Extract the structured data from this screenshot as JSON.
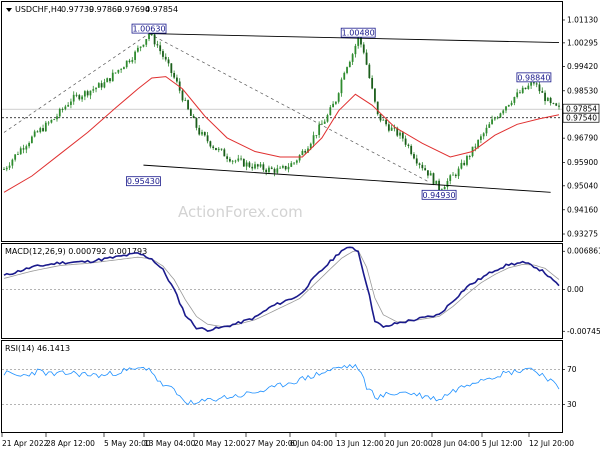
{
  "chart_data": [
    {
      "type": "candlestick",
      "panel": "price",
      "header": {
        "symbol": "USDCHF,H4",
        "o": "0.97739",
        "h": "0.97869",
        "l": "0.97694",
        "c": "0.97854"
      },
      "watermark": "ActionForex.com",
      "ylim": [
        0.9305,
        1.0135
      ],
      "yticks": [
        1.0113,
        1.0029,
        0.9942,
        0.9853,
        0.9767,
        0.9679,
        0.959,
        0.9504,
        0.9416,
        0.9327
      ],
      "ytick_labels": [
        "1.01130",
        "1.00295",
        "0.99420",
        "0.98530",
        "0.97670",
        "0.96790",
        "0.95900",
        "0.95040",
        "0.94160",
        "0.93275"
      ],
      "last_price": 0.97854,
      "last_price_label": "0.97854",
      "support_level": 0.9754,
      "support_label": "0.97540",
      "annotations": [
        {
          "label": "1.00630",
          "value": 1.0063
        },
        {
          "label": "0.95430",
          "value": 0.9543
        },
        {
          "label": "1.00480",
          "value": 1.0048
        },
        {
          "label": "0.94930",
          "value": 0.9493
        },
        {
          "label": "0.98840",
          "value": 0.9884
        }
      ],
      "path": [
        [
          0,
          0.9565
        ],
        [
          6,
          0.964
        ],
        [
          12,
          0.97
        ],
        [
          18,
          0.975
        ],
        [
          24,
          0.982
        ],
        [
          30,
          0.985
        ],
        [
          36,
          0.988
        ],
        [
          42,
          0.994
        ],
        [
          47,
          0.999
        ],
        [
          52,
          1.0063
        ],
        [
          55,
          1.002
        ],
        [
          58,
          0.996
        ],
        [
          62,
          0.988
        ],
        [
          66,
          0.978
        ],
        [
          70,
          0.97
        ],
        [
          76,
          0.964
        ],
        [
          82,
          0.96
        ],
        [
          88,
          0.958
        ],
        [
          94,
          0.9565
        ],
        [
          99,
          0.956
        ],
        [
          104,
          0.959
        ],
        [
          108,
          0.964
        ],
        [
          112,
          0.97
        ],
        [
          116,
          0.976
        ],
        [
          119,
          0.982
        ],
        [
          122,
          0.993
        ],
        [
          125,
          0.999
        ],
        [
          127,
          1.0048
        ],
        [
          129,
          1.0
        ],
        [
          131,
          0.99
        ],
        [
          134,
          0.976
        ],
        [
          138,
          0.972
        ],
        [
          143,
          0.968
        ],
        [
          148,
          0.96
        ],
        [
          153,
          0.954
        ],
        [
          156,
          0.9493
        ],
        [
          159,
          0.952
        ],
        [
          163,
          0.956
        ],
        [
          167,
          0.962
        ],
        [
          171,
          0.968
        ],
        [
          175,
          0.974
        ],
        [
          179,
          0.979
        ],
        [
          183,
          0.983
        ],
        [
          187,
          0.986
        ],
        [
          190,
          0.9884
        ],
        [
          193,
          0.984
        ],
        [
          196,
          0.98
        ],
        [
          199,
          0.9785
        ]
      ],
      "moving_average": [
        [
          0,
          0.948
        ],
        [
          10,
          0.954
        ],
        [
          20,
          0.962
        ],
        [
          30,
          0.97
        ],
        [
          40,
          0.979
        ],
        [
          48,
          0.986
        ],
        [
          53,
          0.99
        ],
        [
          58,
          0.9905
        ],
        [
          64,
          0.986
        ],
        [
          72,
          0.976
        ],
        [
          80,
          0.968
        ],
        [
          90,
          0.963
        ],
        [
          99,
          0.961
        ],
        [
          107,
          0.961
        ],
        [
          114,
          0.968
        ],
        [
          120,
          0.978
        ],
        [
          126,
          0.984
        ],
        [
          132,
          0.98
        ],
        [
          140,
          0.972
        ],
        [
          150,
          0.966
        ],
        [
          160,
          0.961
        ],
        [
          168,
          0.963
        ],
        [
          176,
          0.969
        ],
        [
          184,
          0.973
        ],
        [
          192,
          0.975
        ],
        [
          199,
          0.9765
        ]
      ],
      "trendlines": [
        {
          "from": [
            52,
            1.0063
          ],
          "to": [
            199,
            1.003
          ]
        },
        {
          "from": [
            50,
            0.958
          ],
          "to": [
            196,
            0.948
          ]
        }
      ],
      "dashed_trendlines": [
        {
          "from": [
            0,
            0.97
          ],
          "to": [
            52,
            1.0063
          ]
        },
        {
          "from": [
            52,
            1.0063
          ],
          "to": [
            152,
            0.952
          ]
        }
      ]
    },
    {
      "type": "line",
      "panel": "macd",
      "label": "MACD(12,26,9) 0.000792 0.001793",
      "ylim": [
        -0.0083,
        0.0078
      ],
      "yticks": [
        0.006861,
        0.0,
        -0.007454
      ],
      "ytick_labels": [
        "0.006861",
        "0.00",
        "-0.007454"
      ],
      "main": [
        [
          0,
          0.0025
        ],
        [
          10,
          0.004
        ],
        [
          20,
          0.0048
        ],
        [
          30,
          0.005
        ],
        [
          40,
          0.0058
        ],
        [
          48,
          0.0065
        ],
        [
          53,
          0.0055
        ],
        [
          57,
          0.0035
        ],
        [
          61,
          0.0
        ],
        [
          65,
          -0.0045
        ],
        [
          69,
          -0.0068
        ],
        [
          73,
          -0.0072
        ],
        [
          78,
          -0.0068
        ],
        [
          84,
          -0.006
        ],
        [
          90,
          -0.005
        ],
        [
          96,
          -0.003
        ],
        [
          101,
          -0.002
        ],
        [
          106,
          -0.001
        ],
        [
          111,
          0.002
        ],
        [
          116,
          0.0045
        ],
        [
          121,
          0.007
        ],
        [
          125,
          0.0076
        ],
        [
          127,
          0.0068
        ],
        [
          130,
          0.001
        ],
        [
          133,
          -0.0055
        ],
        [
          136,
          -0.0068
        ],
        [
          141,
          -0.006
        ],
        [
          146,
          -0.0055
        ],
        [
          151,
          -0.005
        ],
        [
          156,
          -0.0045
        ],
        [
          161,
          -0.002
        ],
        [
          166,
          0.0005
        ],
        [
          171,
          0.002
        ],
        [
          176,
          0.0035
        ],
        [
          181,
          0.0045
        ],
        [
          186,
          0.0048
        ],
        [
          190,
          0.0042
        ],
        [
          194,
          0.003
        ],
        [
          197,
          0.0015
        ],
        [
          199,
          0.0008
        ]
      ],
      "signal": [
        [
          0,
          0.002
        ],
        [
          10,
          0.0033
        ],
        [
          20,
          0.0043
        ],
        [
          30,
          0.0047
        ],
        [
          40,
          0.0053
        ],
        [
          48,
          0.0058
        ],
        [
          53,
          0.0055
        ],
        [
          57,
          0.0042
        ],
        [
          61,
          0.0018
        ],
        [
          65,
          -0.0018
        ],
        [
          69,
          -0.0048
        ],
        [
          73,
          -0.0062
        ],
        [
          78,
          -0.0066
        ],
        [
          84,
          -0.0062
        ],
        [
          90,
          -0.0054
        ],
        [
          96,
          -0.004
        ],
        [
          101,
          -0.0028
        ],
        [
          106,
          -0.0016
        ],
        [
          111,
          0.0008
        ],
        [
          116,
          0.0032
        ],
        [
          121,
          0.0056
        ],
        [
          125,
          0.0068
        ],
        [
          127,
          0.007
        ],
        [
          130,
          0.004
        ],
        [
          133,
          -0.0015
        ],
        [
          136,
          -0.0045
        ],
        [
          141,
          -0.0058
        ],
        [
          146,
          -0.0056
        ],
        [
          151,
          -0.0052
        ],
        [
          156,
          -0.0048
        ],
        [
          161,
          -0.003
        ],
        [
          166,
          -0.0008
        ],
        [
          171,
          0.0012
        ],
        [
          176,
          0.0027
        ],
        [
          181,
          0.0039
        ],
        [
          186,
          0.0045
        ],
        [
          190,
          0.0044
        ],
        [
          194,
          0.0038
        ],
        [
          197,
          0.0026
        ],
        [
          199,
          0.0018
        ]
      ]
    },
    {
      "type": "line",
      "panel": "rsi",
      "label": "RSI(14) 46.1413",
      "ylim": [
        0,
        100
      ],
      "yticks": [
        70,
        30
      ],
      "ytick_labels": [
        "70",
        "30"
      ],
      "values": [
        [
          0,
          66
        ],
        [
          6,
          62
        ],
        [
          12,
          68
        ],
        [
          18,
          64
        ],
        [
          24,
          66
        ],
        [
          30,
          64
        ],
        [
          36,
          63
        ],
        [
          42,
          68
        ],
        [
          48,
          70
        ],
        [
          52,
          72
        ],
        [
          56,
          54
        ],
        [
          60,
          48
        ],
        [
          64,
          36
        ],
        [
          68,
          30
        ],
        [
          72,
          34
        ],
        [
          78,
          38
        ],
        [
          84,
          40
        ],
        [
          90,
          44
        ],
        [
          96,
          48
        ],
        [
          101,
          54
        ],
        [
          106,
          58
        ],
        [
          111,
          63
        ],
        [
          116,
          68
        ],
        [
          120,
          72
        ],
        [
          124,
          74
        ],
        [
          127,
          72
        ],
        [
          130,
          50
        ],
        [
          134,
          38
        ],
        [
          138,
          42
        ],
        [
          144,
          44
        ],
        [
          150,
          40
        ],
        [
          156,
          36
        ],
        [
          160,
          44
        ],
        [
          164,
          50
        ],
        [
          168,
          56
        ],
        [
          172,
          60
        ],
        [
          176,
          63
        ],
        [
          180,
          66
        ],
        [
          184,
          68
        ],
        [
          188,
          72
        ],
        [
          192,
          66
        ],
        [
          196,
          58
        ],
        [
          199,
          46
        ]
      ]
    }
  ],
  "time_axis": {
    "labels": [
      "21 Apr 2022",
      "28 Apr 12:00",
      "5 May 20:00",
      "13 May 04:00",
      "20 May 12:00",
      "27 May 20:00",
      "6 Jun 04:00",
      "13 Jun 12:00",
      "20 Jun 20:00",
      "28 Jun 04:00",
      "5 Jul 12:00",
      "12 Jul 20:00"
    ]
  }
}
